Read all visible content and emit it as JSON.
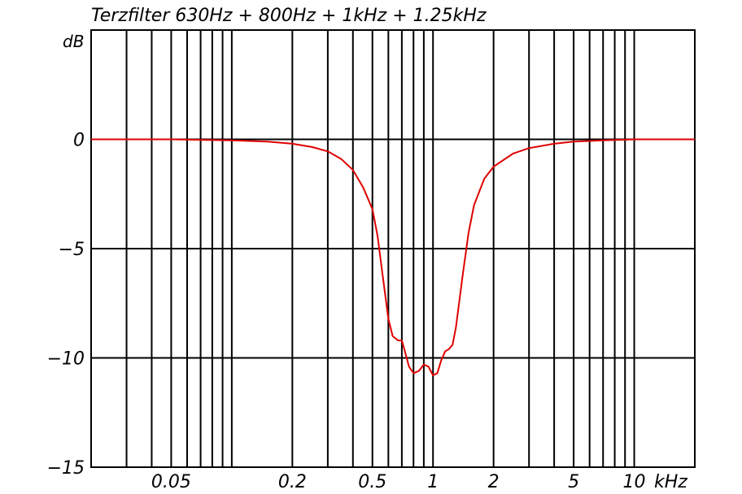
{
  "chart_data": {
    "type": "line",
    "title": "Terzfilter 630Hz + 800Hz + 1kHz + 1.25kHz",
    "ylabel": "dB",
    "xunit": "kHz",
    "xscale": "log",
    "xlim": [
      0.02,
      20
    ],
    "ylim": [
      -15,
      5
    ],
    "grid": true,
    "x_gridlines": [
      0.03,
      0.04,
      0.05,
      0.06,
      0.07,
      0.08,
      0.09,
      0.1,
      0.2,
      0.3,
      0.4,
      0.5,
      0.6,
      0.7,
      0.8,
      0.9,
      1,
      2,
      3,
      4,
      5,
      6,
      7,
      8,
      9,
      10
    ],
    "y_gridlines": [
      0,
      -5,
      -10
    ],
    "x_tick_labels": [
      {
        "value": 0.05,
        "text": "0.05"
      },
      {
        "value": 0.2,
        "text": "0.2"
      },
      {
        "value": 0.5,
        "text": "0.5"
      },
      {
        "value": 1,
        "text": "1"
      },
      {
        "value": 2,
        "text": "2"
      },
      {
        "value": 5,
        "text": "5"
      },
      {
        "value": 10,
        "text": "10"
      }
    ],
    "y_tick_labels": [
      {
        "value": 0,
        "text": "0"
      },
      {
        "value": -5,
        "text": "−5"
      },
      {
        "value": -10,
        "text": "−10"
      },
      {
        "value": -15,
        "text": "−15"
      }
    ],
    "series": [
      {
        "color": "#e00000",
        "x": [
          0.02,
          0.05,
          0.1,
          0.15,
          0.2,
          0.25,
          0.3,
          0.35,
          0.4,
          0.45,
          0.5,
          0.53,
          0.56,
          0.6,
          0.63,
          0.67,
          0.7,
          0.73,
          0.76,
          0.8,
          0.85,
          0.9,
          0.95,
          1.0,
          1.05,
          1.1,
          1.15,
          1.2,
          1.25,
          1.3,
          1.4,
          1.5,
          1.6,
          1.8,
          2.0,
          2.5,
          3.0,
          4.0,
          5.0,
          7.0,
          10.0,
          20.0
        ],
        "y": [
          0,
          0,
          -0.05,
          -0.1,
          -0.2,
          -0.35,
          -0.55,
          -0.9,
          -1.4,
          -2.2,
          -3.2,
          -4.4,
          -6.1,
          -8.2,
          -9.0,
          -9.2,
          -9.2,
          -9.8,
          -10.4,
          -10.7,
          -10.6,
          -10.3,
          -10.4,
          -10.8,
          -10.7,
          -10.1,
          -9.7,
          -9.6,
          -9.4,
          -8.6,
          -6.3,
          -4.3,
          -3.0,
          -1.8,
          -1.25,
          -0.65,
          -0.4,
          -0.2,
          -0.1,
          -0.05,
          0,
          0
        ]
      }
    ]
  }
}
